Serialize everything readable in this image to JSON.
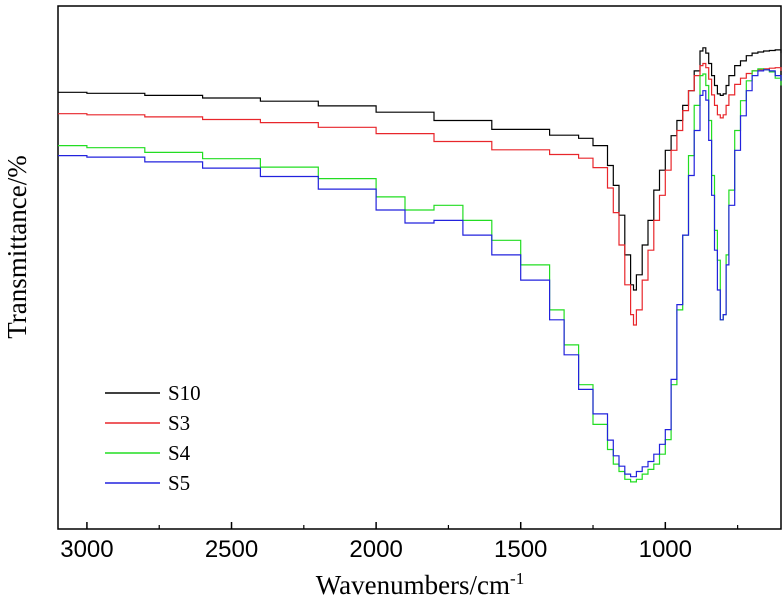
{
  "chart_data": {
    "type": "line",
    "title": "",
    "xlabel": "Wavenumbers/cm",
    "xlabel_superscript": "-1",
    "ylabel": "Transmittance/%",
    "xlim": [
      3100,
      600
    ],
    "x_reversed": true,
    "ylim": [
      0,
      100
    ],
    "y_ticks_shown": false,
    "grid": false,
    "x_ticks": [
      3000,
      2500,
      2000,
      1500,
      1000
    ],
    "legend_position": "bottom-left",
    "series": [
      {
        "name": "S10",
        "color": "#000000",
        "x": [
          3100,
          3000,
          2800,
          2600,
          2400,
          2200,
          2000,
          1800,
          1600,
          1400,
          1300,
          1250,
          1200,
          1180,
          1160,
          1140,
          1120,
          1110,
          1100,
          1080,
          1060,
          1040,
          1020,
          1000,
          980,
          960,
          940,
          920,
          900,
          880,
          870,
          860,
          850,
          840,
          830,
          820,
          810,
          800,
          790,
          780,
          760,
          740,
          720,
          700,
          680,
          660,
          640,
          620,
          600
        ],
        "y": [
          83.5,
          83.3,
          82.9,
          82.4,
          81.8,
          80.9,
          79.7,
          78.1,
          76.4,
          75.3,
          74.7,
          73.3,
          69.5,
          65.7,
          60.0,
          52.4,
          46.7,
          45.7,
          48.6,
          54.3,
          59.0,
          64.8,
          68.6,
          72.4,
          75.2,
          78.1,
          81.0,
          83.8,
          87.6,
          91.4,
          92.0,
          91.0,
          89.0,
          86.7,
          84.8,
          83.2,
          82.9,
          83.2,
          84.8,
          86.7,
          88.6,
          89.5,
          90.5,
          91.0,
          91.2,
          91.4,
          91.5,
          91.6,
          91.0
        ]
      },
      {
        "name": "S3",
        "color": "#e8262b",
        "x": [
          3100,
          3000,
          2800,
          2600,
          2400,
          2200,
          2000,
          1800,
          1600,
          1400,
          1300,
          1250,
          1200,
          1180,
          1160,
          1140,
          1120,
          1110,
          1100,
          1080,
          1060,
          1040,
          1020,
          1000,
          980,
          960,
          940,
          920,
          900,
          880,
          870,
          860,
          850,
          840,
          830,
          820,
          810,
          800,
          790,
          780,
          760,
          740,
          720,
          700,
          680,
          660,
          640,
          620,
          600
        ],
        "y": [
          79.4,
          79.2,
          78.8,
          78.3,
          77.7,
          76.8,
          75.6,
          74.1,
          72.5,
          71.6,
          70.9,
          69.1,
          65.2,
          60.5,
          54.3,
          46.7,
          41.0,
          39.0,
          41.9,
          47.6,
          53.3,
          59.0,
          63.8,
          68.6,
          72.4,
          76.2,
          80.0,
          83.8,
          86.7,
          88.6,
          89.0,
          88.2,
          86.0,
          83.0,
          81.0,
          79.2,
          78.6,
          79.2,
          81.0,
          83.0,
          85.0,
          86.2,
          87.1,
          87.6,
          87.8,
          88.0,
          88.1,
          88.2,
          87.6
        ]
      },
      {
        "name": "S4",
        "color": "#22dd22",
        "x": [
          3100,
          3000,
          2800,
          2600,
          2400,
          2200,
          2000,
          1900,
          1800,
          1700,
          1600,
          1500,
          1400,
          1350,
          1300,
          1250,
          1200,
          1180,
          1160,
          1140,
          1120,
          1100,
          1080,
          1060,
          1040,
          1020,
          1000,
          980,
          960,
          940,
          920,
          900,
          880,
          870,
          860,
          850,
          840,
          830,
          820,
          810,
          800,
          790,
          780,
          760,
          740,
          720,
          700,
          680,
          660,
          640,
          620,
          600
        ],
        "y": [
          73.3,
          72.9,
          72.0,
          70.8,
          69.2,
          67.0,
          63.5,
          61.0,
          61.9,
          59.0,
          55.2,
          50.5,
          41.9,
          35.2,
          27.6,
          20.0,
          15.2,
          12.4,
          11.0,
          9.5,
          9.0,
          9.5,
          10.5,
          11.4,
          12.4,
          14.3,
          17.1,
          27.6,
          41.9,
          56.2,
          71.4,
          81.0,
          86.7,
          87.0,
          84.8,
          78.1,
          67.6,
          57.1,
          51.4,
          40.0,
          41.0,
          52.4,
          64.8,
          76.2,
          81.9,
          85.7,
          87.6,
          88.0,
          87.8,
          87.4,
          86.2,
          84.8
        ]
      },
      {
        "name": "S5",
        "color": "#2222dd",
        "x": [
          3100,
          3000,
          2800,
          2600,
          2400,
          2200,
          2000,
          1900,
          1800,
          1700,
          1600,
          1500,
          1400,
          1350,
          1300,
          1250,
          1200,
          1180,
          1160,
          1140,
          1120,
          1100,
          1080,
          1060,
          1040,
          1020,
          1000,
          980,
          960,
          940,
          920,
          900,
          880,
          870,
          860,
          850,
          840,
          830,
          820,
          810,
          800,
          790,
          780,
          760,
          740,
          720,
          700,
          680,
          660,
          640,
          620,
          600
        ],
        "y": [
          71.4,
          71.1,
          70.2,
          69.0,
          67.4,
          65.0,
          61.0,
          58.5,
          59.0,
          56.2,
          52.4,
          47.6,
          40.0,
          33.3,
          26.7,
          22.0,
          17.0,
          14.0,
          12.0,
          10.5,
          10.0,
          11.0,
          11.9,
          12.9,
          14.3,
          16.2,
          19.0,
          28.6,
          42.9,
          56.2,
          67.6,
          76.2,
          82.9,
          83.8,
          82.0,
          74.3,
          63.8,
          53.3,
          45.7,
          40.0,
          41.0,
          50.5,
          61.9,
          72.4,
          79.0,
          83.8,
          86.7,
          87.6,
          87.8,
          87.6,
          86.7,
          85.7
        ]
      }
    ]
  }
}
